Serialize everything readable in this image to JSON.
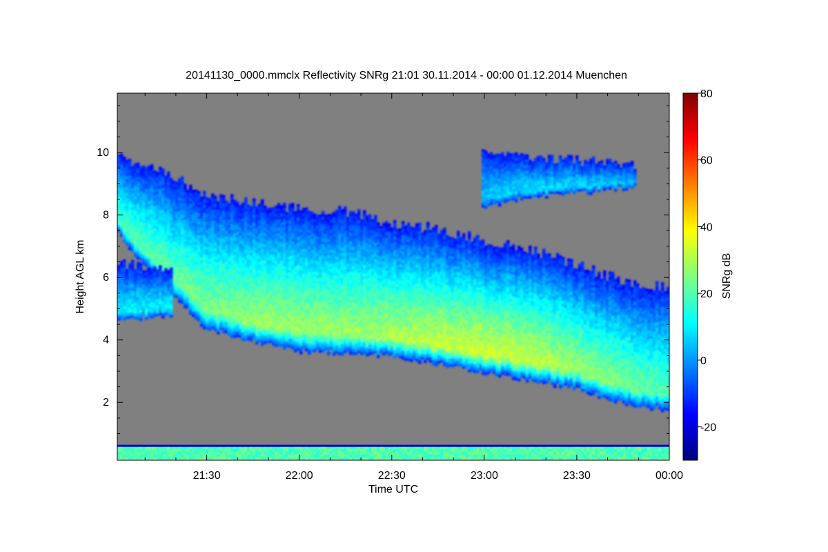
{
  "chart_data": {
    "type": "heatmap",
    "title": "20141130_0000.mmclx Reflectivity SNRg   21:01 30.11.2014 - 00:00 01.12.2014 Muenchen",
    "xlabel": "Time UTC",
    "ylabel": "Height AGL km",
    "colorbar_label": "SNRg dB",
    "x_start": "21:01",
    "x_end": "00:00",
    "x_range_hours": [
      21.0167,
      24.0
    ],
    "x_ticks": [
      {
        "value": 21.5,
        "label": "21:30"
      },
      {
        "value": 22.0,
        "label": "22:00"
      },
      {
        "value": 22.5,
        "label": "22:30"
      },
      {
        "value": 23.0,
        "label": "23:00"
      },
      {
        "value": 23.5,
        "label": "23:30"
      },
      {
        "value": 24.0,
        "label": "00:00"
      }
    ],
    "y_range_km": [
      0.15,
      11.9
    ],
    "y_ticks": [
      {
        "value": 2,
        "label": "2"
      },
      {
        "value": 4,
        "label": "4"
      },
      {
        "value": 6,
        "label": "6"
      },
      {
        "value": 8,
        "label": "8"
      },
      {
        "value": 10,
        "label": "10"
      }
    ],
    "colorbar_range_db": [
      -30,
      80
    ],
    "colorbar_ticks": [
      {
        "value": -20,
        "label": "-20"
      },
      {
        "value": 0,
        "label": "0"
      },
      {
        "value": 20,
        "label": "20"
      },
      {
        "value": 40,
        "label": "40"
      },
      {
        "value": 60,
        "label": "60"
      },
      {
        "value": 80,
        "label": "80"
      }
    ],
    "colormap": [
      "#00007f",
      "#0000ff",
      "#007fff",
      "#00ffff",
      "#7fff7f",
      "#ffff00",
      "#ff7f00",
      "#ff0000",
      "#7f0000"
    ],
    "background_color": "#808080",
    "cloud_layers": [
      {
        "name": "main-cloud",
        "time": [
          21.0167,
          21.1,
          21.3,
          21.5,
          21.8,
          22.0,
          22.3,
          22.5,
          22.7,
          23.0,
          23.3,
          23.5,
          23.7,
          23.85,
          24.0
        ],
        "top_km": [
          9.9,
          9.7,
          9.3,
          8.6,
          8.4,
          8.2,
          8.1,
          7.7,
          7.6,
          7.2,
          6.8,
          6.4,
          6.0,
          5.8,
          5.7
        ],
        "base_km": [
          7.6,
          6.8,
          5.6,
          4.4,
          3.9,
          3.7,
          3.6,
          3.5,
          3.3,
          3.0,
          2.7,
          2.5,
          2.1,
          1.9,
          1.8
        ],
        "peak_snr_db": [
          18,
          20,
          22,
          25,
          28,
          28,
          28,
          30,
          32,
          34,
          32,
          28,
          25,
          22,
          20
        ]
      },
      {
        "name": "upper-cloud",
        "time": [
          23.0,
          23.2,
          23.4,
          23.6,
          23.8
        ],
        "top_km": [
          10.0,
          9.9,
          9.8,
          9.7,
          9.6
        ],
        "base_km": [
          8.3,
          8.6,
          8.7,
          8.8,
          8.9
        ],
        "peak_snr_db": [
          5,
          8,
          8,
          6,
          4
        ]
      },
      {
        "name": "low-layer",
        "time": [
          21.0167,
          21.3
        ],
        "top_km": [
          6.5,
          6.2
        ],
        "base_km": [
          4.7,
          4.8
        ],
        "peak_snr_db": [
          10,
          10
        ]
      }
    ],
    "near_ground_band_km": [
      0.15,
      0.6
    ],
    "near_ground_snr_db": 30
  }
}
